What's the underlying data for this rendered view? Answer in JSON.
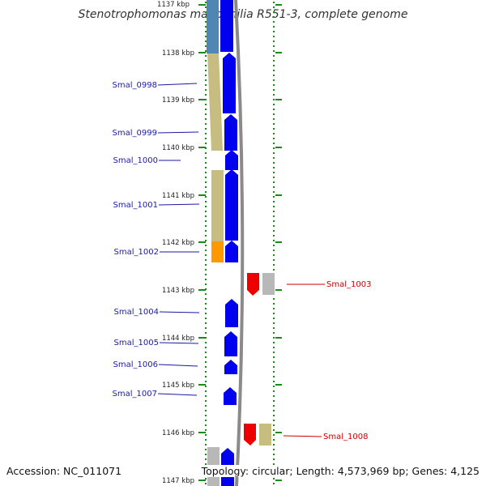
{
  "title": "Stenotrophomonas maltophilia R551-3, complete genome",
  "footer": {
    "accession": "Accession: NC_011071",
    "topology": "Topology: circular; Length: 4,573,969 bp; Genes: 4,125"
  },
  "colors": {
    "forward_gene": "#0000ee",
    "reverse_gene": "#ee0000",
    "label_forward": "#1a1aa6",
    "label_reverse": "#cc0000",
    "tick": "#1a8a1a",
    "khaki": "#c8bd80",
    "steel_blue": "#4f86b4",
    "orange": "#ff9900",
    "grey": "#b8b8b8"
  },
  "ruler": {
    "unit": "kbp",
    "labels": [
      "1137 kbp",
      "1138 kbp",
      "1139 kbp",
      "1140 kbp",
      "1141 kbp",
      "1142 kbp",
      "1143 kbp",
      "1144 kbp",
      "1145 kbp",
      "1146 kbp",
      "1147 kbp"
    ]
  },
  "forward_labels": [
    "Smal_0998",
    "Smal_0999",
    "Smal_1000",
    "Smal_1001",
    "Smal_1002",
    "Smal_1004",
    "Smal_1005",
    "Smal_1006",
    "Smal_1007"
  ],
  "reverse_labels": [
    "Smal_1003",
    "Smal_1008"
  ]
}
